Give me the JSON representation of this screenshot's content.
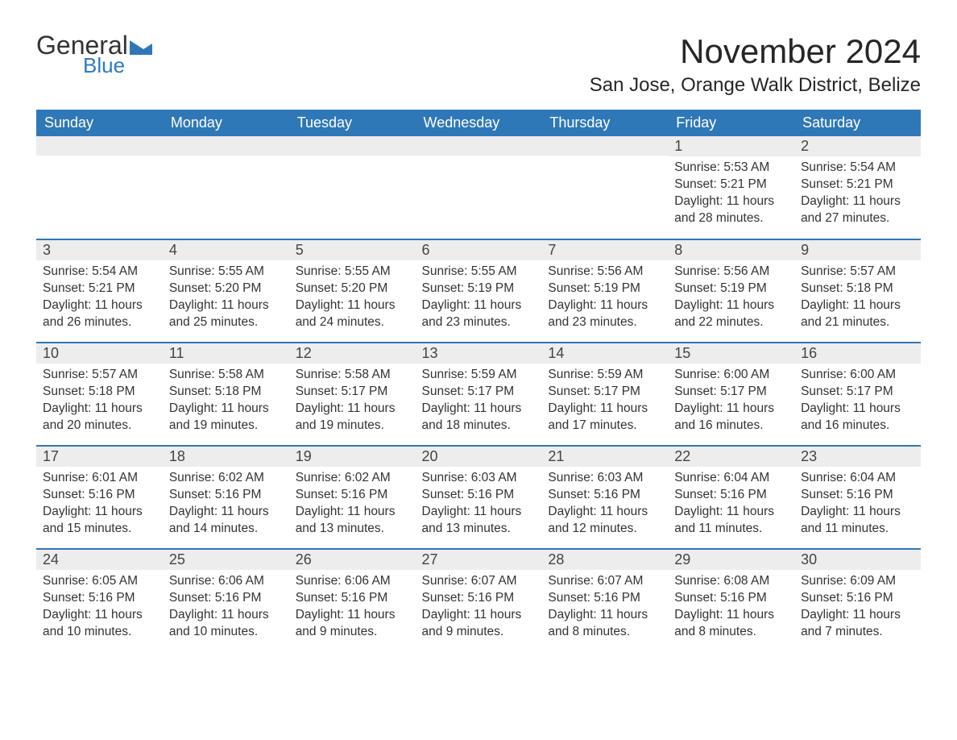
{
  "brand": {
    "general": "General",
    "blue": "Blue",
    "tri_color": "#2f78b7"
  },
  "title": "November 2024",
  "location": "San Jose, Orange Walk District, Belize",
  "colors": {
    "header_bg": "#2f78b7",
    "header_text": "#ffffff",
    "daynum_bg": "#ededed",
    "rule": "#2f78b7",
    "body_text": "#333333"
  },
  "day_headers": [
    "Sunday",
    "Monday",
    "Tuesday",
    "Wednesday",
    "Thursday",
    "Friday",
    "Saturday"
  ],
  "weeks": [
    [
      {
        "n": "",
        "sunrise": "",
        "sunset": "",
        "daylight": ""
      },
      {
        "n": "",
        "sunrise": "",
        "sunset": "",
        "daylight": ""
      },
      {
        "n": "",
        "sunrise": "",
        "sunset": "",
        "daylight": ""
      },
      {
        "n": "",
        "sunrise": "",
        "sunset": "",
        "daylight": ""
      },
      {
        "n": "",
        "sunrise": "",
        "sunset": "",
        "daylight": ""
      },
      {
        "n": "1",
        "sunrise": "Sunrise: 5:53 AM",
        "sunset": "Sunset: 5:21 PM",
        "daylight": "Daylight: 11 hours and 28 minutes."
      },
      {
        "n": "2",
        "sunrise": "Sunrise: 5:54 AM",
        "sunset": "Sunset: 5:21 PM",
        "daylight": "Daylight: 11 hours and 27 minutes."
      }
    ],
    [
      {
        "n": "3",
        "sunrise": "Sunrise: 5:54 AM",
        "sunset": "Sunset: 5:21 PM",
        "daylight": "Daylight: 11 hours and 26 minutes."
      },
      {
        "n": "4",
        "sunrise": "Sunrise: 5:55 AM",
        "sunset": "Sunset: 5:20 PM",
        "daylight": "Daylight: 11 hours and 25 minutes."
      },
      {
        "n": "5",
        "sunrise": "Sunrise: 5:55 AM",
        "sunset": "Sunset: 5:20 PM",
        "daylight": "Daylight: 11 hours and 24 minutes."
      },
      {
        "n": "6",
        "sunrise": "Sunrise: 5:55 AM",
        "sunset": "Sunset: 5:19 PM",
        "daylight": "Daylight: 11 hours and 23 minutes."
      },
      {
        "n": "7",
        "sunrise": "Sunrise: 5:56 AM",
        "sunset": "Sunset: 5:19 PM",
        "daylight": "Daylight: 11 hours and 23 minutes."
      },
      {
        "n": "8",
        "sunrise": "Sunrise: 5:56 AM",
        "sunset": "Sunset: 5:19 PM",
        "daylight": "Daylight: 11 hours and 22 minutes."
      },
      {
        "n": "9",
        "sunrise": "Sunrise: 5:57 AM",
        "sunset": "Sunset: 5:18 PM",
        "daylight": "Daylight: 11 hours and 21 minutes."
      }
    ],
    [
      {
        "n": "10",
        "sunrise": "Sunrise: 5:57 AM",
        "sunset": "Sunset: 5:18 PM",
        "daylight": "Daylight: 11 hours and 20 minutes."
      },
      {
        "n": "11",
        "sunrise": "Sunrise: 5:58 AM",
        "sunset": "Sunset: 5:18 PM",
        "daylight": "Daylight: 11 hours and 19 minutes."
      },
      {
        "n": "12",
        "sunrise": "Sunrise: 5:58 AM",
        "sunset": "Sunset: 5:17 PM",
        "daylight": "Daylight: 11 hours and 19 minutes."
      },
      {
        "n": "13",
        "sunrise": "Sunrise: 5:59 AM",
        "sunset": "Sunset: 5:17 PM",
        "daylight": "Daylight: 11 hours and 18 minutes."
      },
      {
        "n": "14",
        "sunrise": "Sunrise: 5:59 AM",
        "sunset": "Sunset: 5:17 PM",
        "daylight": "Daylight: 11 hours and 17 minutes."
      },
      {
        "n": "15",
        "sunrise": "Sunrise: 6:00 AM",
        "sunset": "Sunset: 5:17 PM",
        "daylight": "Daylight: 11 hours and 16 minutes."
      },
      {
        "n": "16",
        "sunrise": "Sunrise: 6:00 AM",
        "sunset": "Sunset: 5:17 PM",
        "daylight": "Daylight: 11 hours and 16 minutes."
      }
    ],
    [
      {
        "n": "17",
        "sunrise": "Sunrise: 6:01 AM",
        "sunset": "Sunset: 5:16 PM",
        "daylight": "Daylight: 11 hours and 15 minutes."
      },
      {
        "n": "18",
        "sunrise": "Sunrise: 6:02 AM",
        "sunset": "Sunset: 5:16 PM",
        "daylight": "Daylight: 11 hours and 14 minutes."
      },
      {
        "n": "19",
        "sunrise": "Sunrise: 6:02 AM",
        "sunset": "Sunset: 5:16 PM",
        "daylight": "Daylight: 11 hours and 13 minutes."
      },
      {
        "n": "20",
        "sunrise": "Sunrise: 6:03 AM",
        "sunset": "Sunset: 5:16 PM",
        "daylight": "Daylight: 11 hours and 13 minutes."
      },
      {
        "n": "21",
        "sunrise": "Sunrise: 6:03 AM",
        "sunset": "Sunset: 5:16 PM",
        "daylight": "Daylight: 11 hours and 12 minutes."
      },
      {
        "n": "22",
        "sunrise": "Sunrise: 6:04 AM",
        "sunset": "Sunset: 5:16 PM",
        "daylight": "Daylight: 11 hours and 11 minutes."
      },
      {
        "n": "23",
        "sunrise": "Sunrise: 6:04 AM",
        "sunset": "Sunset: 5:16 PM",
        "daylight": "Daylight: 11 hours and 11 minutes."
      }
    ],
    [
      {
        "n": "24",
        "sunrise": "Sunrise: 6:05 AM",
        "sunset": "Sunset: 5:16 PM",
        "daylight": "Daylight: 11 hours and 10 minutes."
      },
      {
        "n": "25",
        "sunrise": "Sunrise: 6:06 AM",
        "sunset": "Sunset: 5:16 PM",
        "daylight": "Daylight: 11 hours and 10 minutes."
      },
      {
        "n": "26",
        "sunrise": "Sunrise: 6:06 AM",
        "sunset": "Sunset: 5:16 PM",
        "daylight": "Daylight: 11 hours and 9 minutes."
      },
      {
        "n": "27",
        "sunrise": "Sunrise: 6:07 AM",
        "sunset": "Sunset: 5:16 PM",
        "daylight": "Daylight: 11 hours and 9 minutes."
      },
      {
        "n": "28",
        "sunrise": "Sunrise: 6:07 AM",
        "sunset": "Sunset: 5:16 PM",
        "daylight": "Daylight: 11 hours and 8 minutes."
      },
      {
        "n": "29",
        "sunrise": "Sunrise: 6:08 AM",
        "sunset": "Sunset: 5:16 PM",
        "daylight": "Daylight: 11 hours and 8 minutes."
      },
      {
        "n": "30",
        "sunrise": "Sunrise: 6:09 AM",
        "sunset": "Sunset: 5:16 PM",
        "daylight": "Daylight: 11 hours and 7 minutes."
      }
    ]
  ]
}
